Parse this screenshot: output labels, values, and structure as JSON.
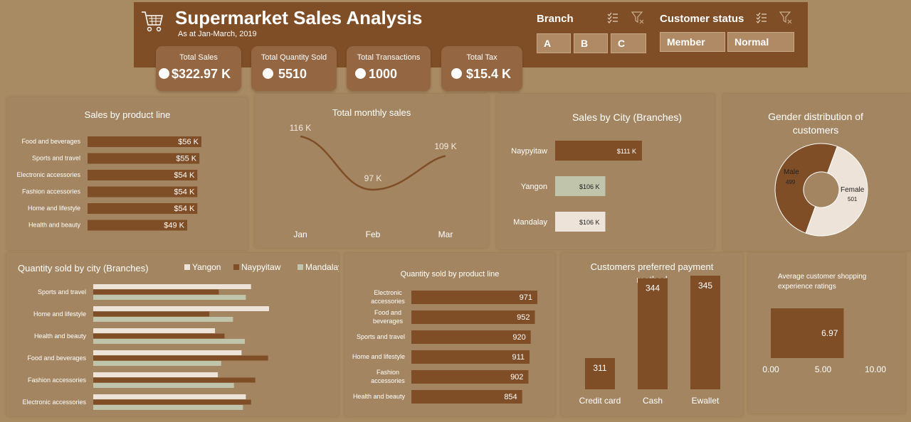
{
  "header": {
    "title": "Supermarket Sales Analysis",
    "subtitle": "As at Jan-March, 2019"
  },
  "kpis": [
    {
      "label": "Total Sales",
      "value": "$322.97 K",
      "icon": "money-bag-icon"
    },
    {
      "label": "Total Quantity Sold",
      "value": "5510",
      "icon": "aperture-icon"
    },
    {
      "label": "Total Transactions",
      "value": "1000",
      "icon": "aperture-icon"
    },
    {
      "label": "Total Tax",
      "value": "$15.4 K",
      "icon": "money-bag-icon"
    }
  ],
  "slicers": {
    "branch": {
      "title": "Branch",
      "options": [
        "A",
        "B",
        "C"
      ]
    },
    "customer_status": {
      "title": "Customer status",
      "options": [
        "Member",
        "Normal"
      ]
    }
  },
  "colors": {
    "dark_brown": "#7f4e27",
    "light_green": "#bfc4ab",
    "cream": "#ede3d8",
    "panel": "#a38661",
    "background": "#a88a63"
  },
  "chart_data": [
    {
      "id": "sales_by_product_line",
      "type": "bar",
      "orientation": "horizontal",
      "title": "Sales by product line",
      "categories": [
        "Food and beverages",
        "Sports and travel",
        "Electronic accessories",
        "Fashion accessories",
        "Home and lifestyle",
        "Health and beauty"
      ],
      "values": [
        56,
        55,
        54,
        54,
        54,
        49
      ],
      "labels": [
        "$56 K",
        "$55 K",
        "$54 K",
        "$54 K",
        "$54 K",
        "$49 K"
      ],
      "unit": "K"
    },
    {
      "id": "total_monthly_sales",
      "type": "line",
      "title": "Total monthly sales",
      "categories": [
        "Jan",
        "Feb",
        "Mar"
      ],
      "values": [
        116,
        97,
        109
      ],
      "labels": [
        "116 K",
        "97 K",
        "109 K"
      ]
    },
    {
      "id": "sales_by_city",
      "type": "bar",
      "orientation": "horizontal",
      "title": "Sales by City (Branches)",
      "categories": [
        "Naypyitaw",
        "Yangon",
        "Mandalay"
      ],
      "values": [
        111,
        106,
        106
      ],
      "labels": [
        "$111 K",
        "$106 K",
        "$106 K"
      ]
    },
    {
      "id": "gender_distribution",
      "type": "pie",
      "title": "Gender distribution of customers",
      "categories": [
        "Male",
        "Female"
      ],
      "values": [
        499,
        501
      ]
    },
    {
      "id": "quantity_by_city",
      "type": "bar",
      "orientation": "horizontal",
      "title": "Quantity sold by city (Branches)",
      "legend": "top-right",
      "categories": [
        "Sports and travel",
        "Home and lifestyle",
        "Health and beauty",
        "Food and beverages",
        "Fashion accessories",
        "Electronic accessories"
      ],
      "series": [
        {
          "name": "Yangon",
          "values": [
            333,
            371,
            257,
            313,
            263,
            322
          ]
        },
        {
          "name": "Naypyitaw",
          "values": [
            265,
            245,
            277,
            369,
            342,
            333
          ]
        },
        {
          "name": "Mandalay",
          "values": [
            322,
            295,
            320,
            270,
            297,
            316
          ]
        }
      ]
    },
    {
      "id": "quantity_by_product_line",
      "type": "bar",
      "orientation": "horizontal",
      "title": "Quantity sold by product line",
      "categories": [
        "Electronic accessories",
        "Food and beverages",
        "Sports and travel",
        "Home and lifestyle",
        "Fashion accessories",
        "Health and beauty"
      ],
      "values": [
        971,
        952,
        920,
        911,
        902,
        854
      ]
    },
    {
      "id": "payment_method",
      "type": "bar",
      "title": "Customers preferred payment method",
      "categories": [
        "Credit card",
        "Cash",
        "Ewallet"
      ],
      "values": [
        311,
        344,
        345
      ]
    },
    {
      "id": "avg_rating",
      "type": "bar",
      "orientation": "horizontal",
      "title": "Average customer shopping experience ratings",
      "values": [
        6.97
      ],
      "xlim": [
        0,
        10
      ],
      "ticks": [
        "0.00",
        "5.00",
        "10.00"
      ]
    }
  ]
}
